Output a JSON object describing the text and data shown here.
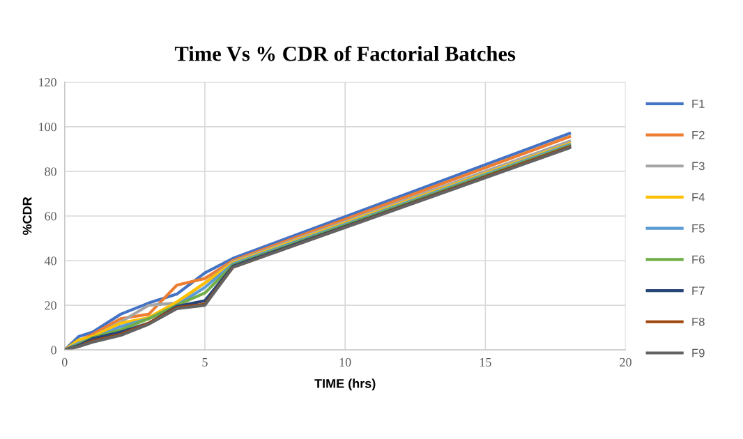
{
  "chart_data": {
    "type": "line",
    "title": "Time Vs % CDR of Factorial Batches",
    "xlabel": "TIME (hrs)",
    "ylabel": "%CDR",
    "x": [
      0,
      0.5,
      1,
      2,
      3,
      4,
      5,
      6,
      18
    ],
    "xlim": [
      0,
      20
    ],
    "xticks": [
      0,
      5,
      10,
      15,
      20
    ],
    "ylim": [
      0,
      120
    ],
    "yticks": [
      0,
      20,
      40,
      60,
      80,
      100,
      120
    ],
    "grid": true,
    "legend": "right",
    "marker": "none",
    "line_style": "solid",
    "series": [
      {
        "name": "F1",
        "color": "#4472c4",
        "values": [
          0,
          6,
          8,
          16,
          21,
          25,
          34.5,
          41,
          97
        ]
      },
      {
        "name": "F2",
        "color": "#ed7d31",
        "values": [
          0,
          4,
          7,
          14,
          16,
          29,
          32,
          40,
          95.5
        ]
      },
      {
        "name": "F3",
        "color": "#a5a5a5",
        "values": [
          0,
          3,
          6,
          12.5,
          20,
          21,
          30,
          39.5,
          93.5
        ]
      },
      {
        "name": "F4",
        "color": "#ffc000",
        "values": [
          0,
          4.5,
          6,
          12,
          14.5,
          21.5,
          30,
          39,
          92.5
        ]
      },
      {
        "name": "F5",
        "color": "#5b9bd5",
        "values": [
          0,
          3,
          5,
          10.5,
          14,
          20,
          28,
          38.5,
          92
        ]
      },
      {
        "name": "F6",
        "color": "#70ad47",
        "values": [
          0,
          2.5,
          5.5,
          9,
          14,
          20,
          25.5,
          38,
          91.5
        ]
      },
      {
        "name": "F7",
        "color": "#264478",
        "values": [
          0,
          2,
          5,
          8,
          12,
          19.5,
          22,
          37.5,
          91
        ]
      },
      {
        "name": "F8",
        "color": "#9e480e",
        "values": [
          0,
          1.5,
          4,
          7,
          12,
          19,
          20.5,
          37,
          91
        ]
      },
      {
        "name": "F9",
        "color": "#636363",
        "values": [
          0,
          1.5,
          3.5,
          6.5,
          11.5,
          18.5,
          20,
          37,
          90.5
        ]
      }
    ]
  }
}
